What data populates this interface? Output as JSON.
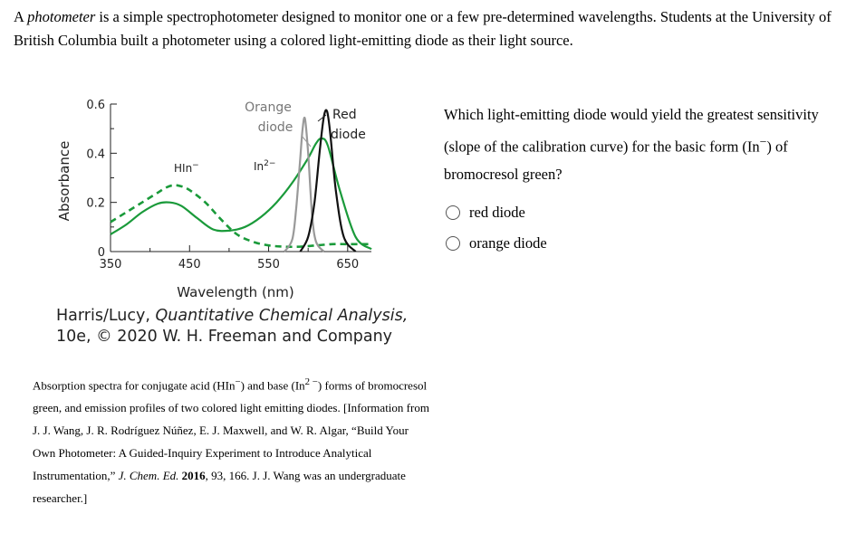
{
  "intro": {
    "lead": "A ",
    "term": "photometer",
    "rest": " is a simple spectrophotometer designed to monitor one or a few pre-determined wavelengths. Students at the University of British Columbia built a photometer using a colored light-emitting diode as their light source."
  },
  "chart_data": {
    "type": "line",
    "xlabel": "Wavelength (nm)",
    "ylabel": "Absorbance",
    "xlim": [
      350,
      680
    ],
    "ylim": [
      0,
      0.6
    ],
    "x_ticks": [
      350,
      450,
      550,
      650
    ],
    "y_ticks": [
      0,
      0.2,
      0.4,
      0.6
    ],
    "y_tick_labels": [
      "0",
      "0.2",
      "0.4",
      "0.6"
    ],
    "series": [
      {
        "name": "HIn−",
        "style": "dashed",
        "color": "#1a9a3a",
        "x": [
          350,
          370,
          390,
          410,
          420,
          430,
          440,
          450,
          470,
          490,
          510,
          530,
          550,
          570,
          590,
          610,
          630,
          650,
          670,
          680
        ],
        "y": [
          0.12,
          0.16,
          0.2,
          0.24,
          0.26,
          0.27,
          0.265,
          0.25,
          0.2,
          0.13,
          0.07,
          0.04,
          0.025,
          0.02,
          0.02,
          0.025,
          0.03,
          0.03,
          0.03,
          0.03
        ]
      },
      {
        "name": "In2−",
        "style": "solid",
        "color": "#1a9a3a",
        "x": [
          350,
          370,
          390,
          410,
          425,
          440,
          460,
          480,
          500,
          520,
          540,
          560,
          580,
          600,
          610,
          617,
          625,
          640,
          660,
          680
        ],
        "y": [
          0.07,
          0.11,
          0.16,
          0.195,
          0.2,
          0.185,
          0.135,
          0.09,
          0.085,
          0.1,
          0.14,
          0.2,
          0.28,
          0.38,
          0.44,
          0.46,
          0.43,
          0.25,
          0.06,
          0.01
        ]
      },
      {
        "name": "Orange diode",
        "style": "solid",
        "color": "#999999",
        "x": [
          570,
          580,
          585,
          590,
          593,
          596,
          600,
          605,
          610,
          620
        ],
        "y": [
          0.0,
          0.05,
          0.18,
          0.38,
          0.5,
          0.54,
          0.4,
          0.15,
          0.04,
          0.0
        ]
      },
      {
        "name": "Red diode",
        "style": "solid",
        "color": "#111111",
        "x": [
          590,
          600,
          608,
          615,
          620,
          624,
          628,
          635,
          645,
          660
        ],
        "y": [
          0.0,
          0.06,
          0.2,
          0.42,
          0.55,
          0.57,
          0.48,
          0.25,
          0.06,
          0.0
        ]
      }
    ],
    "annotations": {
      "hin_base": "HIn",
      "hin_sup": "−",
      "in_base": "In",
      "in_sup": "2−",
      "orange_line1": "Orange",
      "orange_line2": "diode",
      "red_line1": "Red",
      "red_line2": "diode"
    },
    "grid": false
  },
  "credit": {
    "line1_authors": "Harris/Lucy, ",
    "line1_book": "Quantitative Chemical Analysis,",
    "line2": "10e, © 2020 W. H. Freeman and Company"
  },
  "caption": {
    "p1": "Absorption spectra for conjugate acid (HIn",
    "p1_sup": "−",
    "p2": ") and base (In",
    "p2_sup": "2 −",
    "p3": ") forms of bromocresol green, and emission profiles of two colored light emitting diodes. [Information from J. J. Wang, J. R. Rodríguez Núñez, E. J. Maxwell, and W. R. Algar, “Build Your Own Photometer: A Guided-Inquiry Experiment to Introduce Analytical Instrumentation,” ",
    "journal": "J. Chem. Ed.",
    "year_sep": " ",
    "year": "2016",
    "p4": ", 93, 166. J. J. Wang was an undergraduate researcher.]"
  },
  "question": {
    "p1": "Which light-emitting diode would yield the greatest sensitivity (slope of the calibration curve) for the basic form (In",
    "sup": "−",
    "p2": ") of bromocresol green?"
  },
  "options": [
    {
      "label": "red diode"
    },
    {
      "label": "orange diode"
    }
  ]
}
